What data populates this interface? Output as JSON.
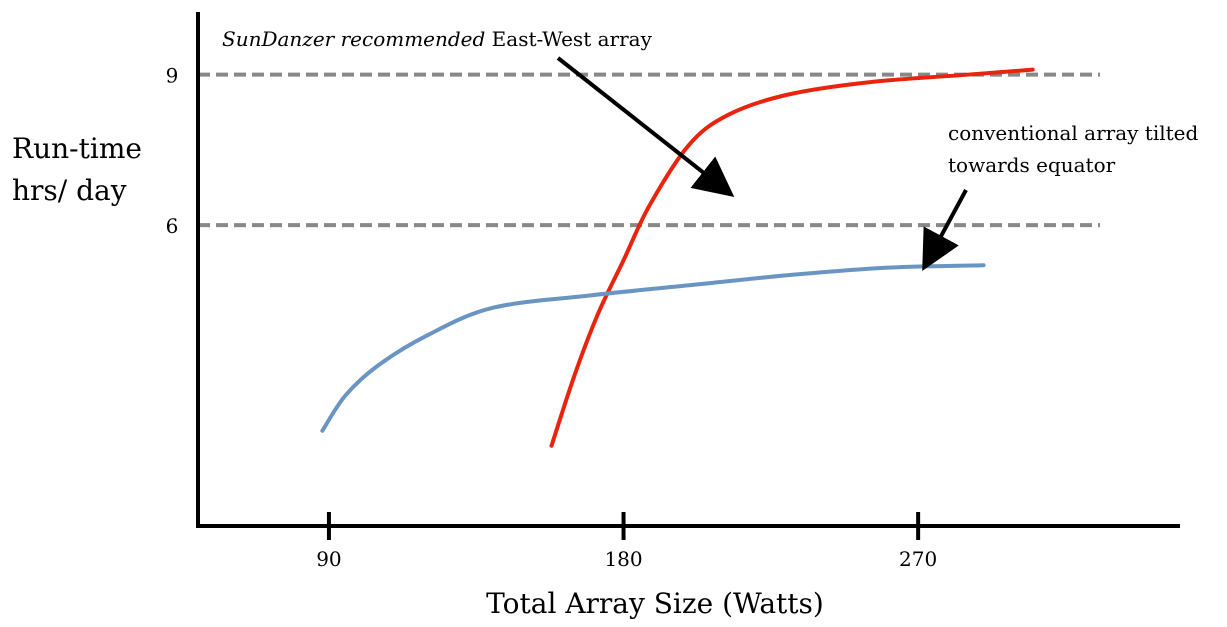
{
  "chart_data": {
    "type": "line",
    "title": "",
    "xlabel": "Total Array Size (Watts)",
    "ylabel_lines": [
      "Run-time",
      "hrs/ day"
    ],
    "x_ticks": [
      90,
      180,
      270
    ],
    "y_ticks": [
      6,
      9
    ],
    "xlim": [
      50,
      350
    ],
    "ylim": [
      0,
      10.25
    ],
    "reference_lines": [
      {
        "y": 9,
        "style": "dashed",
        "color": "#888888"
      },
      {
        "y": 6,
        "style": "dashed",
        "color": "#888888"
      }
    ],
    "series": [
      {
        "color": "#e8240e",
        "points": [
          [
            158,
            1.6
          ],
          [
            165,
            3.0
          ],
          [
            172,
            4.2
          ],
          [
            180,
            5.3
          ],
          [
            188,
            6.4
          ],
          [
            200,
            7.6
          ],
          [
            212,
            8.2
          ],
          [
            230,
            8.6
          ],
          [
            255,
            8.85
          ],
          [
            285,
            9.0
          ],
          [
            305,
            9.1
          ]
        ]
      },
      {
        "color": "#6a95c3",
        "points": [
          [
            88,
            1.9
          ],
          [
            95,
            2.6
          ],
          [
            105,
            3.2
          ],
          [
            120,
            3.8
          ],
          [
            140,
            4.35
          ],
          [
            170,
            4.6
          ],
          [
            200,
            4.8
          ],
          [
            230,
            5.0
          ],
          [
            260,
            5.15
          ],
          [
            290,
            5.2
          ]
        ]
      }
    ],
    "annotations": [
      {
        "text_italic": "SunDanzer recommended",
        "text": " East-West array",
        "arrow_color": "#000000"
      },
      {
        "lines": [
          "conventional array tilted",
          "towards equator"
        ],
        "arrow_color": "#000000"
      }
    ]
  }
}
